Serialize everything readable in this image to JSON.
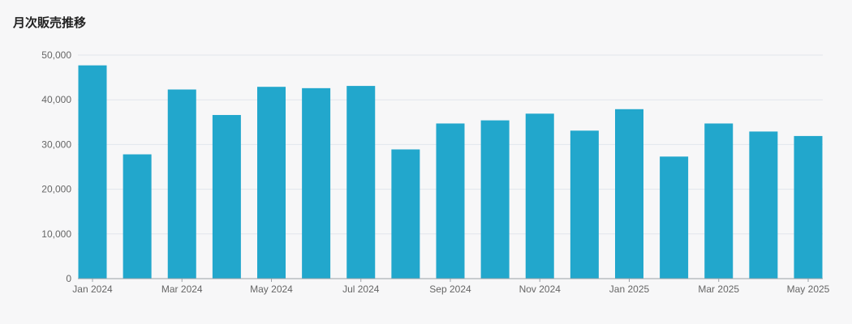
{
  "title": "月次販売推移",
  "chart_data": {
    "type": "bar",
    "categories": [
      "Jan 2024",
      "Feb 2024",
      "Mar 2024",
      "Apr 2024",
      "May 2024",
      "Jun 2024",
      "Jul 2024",
      "Aug 2024",
      "Sep 2024",
      "Oct 2024",
      "Nov 2024",
      "Dec 2024",
      "Jan 2025",
      "Feb 2025",
      "Mar 2025",
      "Apr 2025",
      "May 2025"
    ],
    "x_tick_labels": [
      "Jan 2024",
      "Mar 2024",
      "May 2024",
      "Jul 2024",
      "Sep 2024",
      "Nov 2024",
      "Jan 2025",
      "Mar 2025",
      "May 2025"
    ],
    "values": [
      47700,
      27800,
      42300,
      36600,
      42900,
      42600,
      43100,
      28900,
      34700,
      35400,
      36900,
      33100,
      37900,
      27300,
      34700,
      32900,
      31900
    ],
    "ylim": [
      0,
      50000
    ],
    "y_ticks": [
      0,
      10000,
      20000,
      30000,
      40000,
      50000
    ],
    "y_tick_labels": [
      "0",
      "10,000",
      "20,000",
      "30,000",
      "40,000",
      "50,000"
    ],
    "grid": true,
    "bar_color": "#22a7cc",
    "grid_color": "#e2e6ec",
    "axis_color": "#9aa0a6"
  }
}
